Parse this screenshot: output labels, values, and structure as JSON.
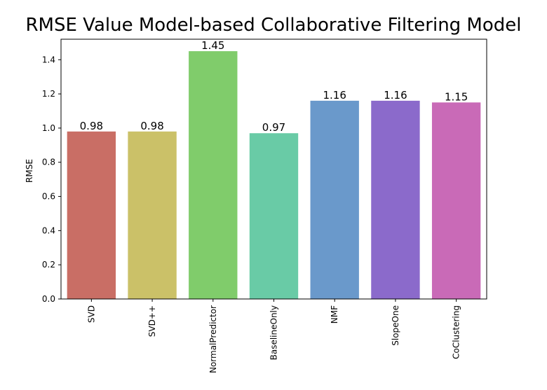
{
  "chart_data": {
    "type": "bar",
    "title": "RMSE Value Model-based Collaborative Filtering Model",
    "xlabel": "",
    "ylabel": "RMSE",
    "categories": [
      "SVD",
      "SVD++",
      "NormalPredictor",
      "BaselineOnly",
      "NMF",
      "SlopeOne",
      "CoClustering"
    ],
    "values": [
      0.98,
      0.98,
      1.45,
      0.97,
      1.16,
      1.16,
      1.15
    ],
    "value_labels": [
      "0.98",
      "0.98",
      "1.45",
      "0.97",
      "1.16",
      "1.16",
      "1.15"
    ],
    "colors": [
      "#c96e65",
      "#cbc168",
      "#80cc6b",
      "#69cba6",
      "#6a99cb",
      "#8b6acb",
      "#c96ab7"
    ],
    "yticks": [
      "0.0",
      "0.2",
      "0.4",
      "0.6",
      "0.8",
      "1.0",
      "1.2",
      "1.4"
    ],
    "ylim": [
      0,
      1.52
    ],
    "grid": false,
    "legend": "none"
  }
}
